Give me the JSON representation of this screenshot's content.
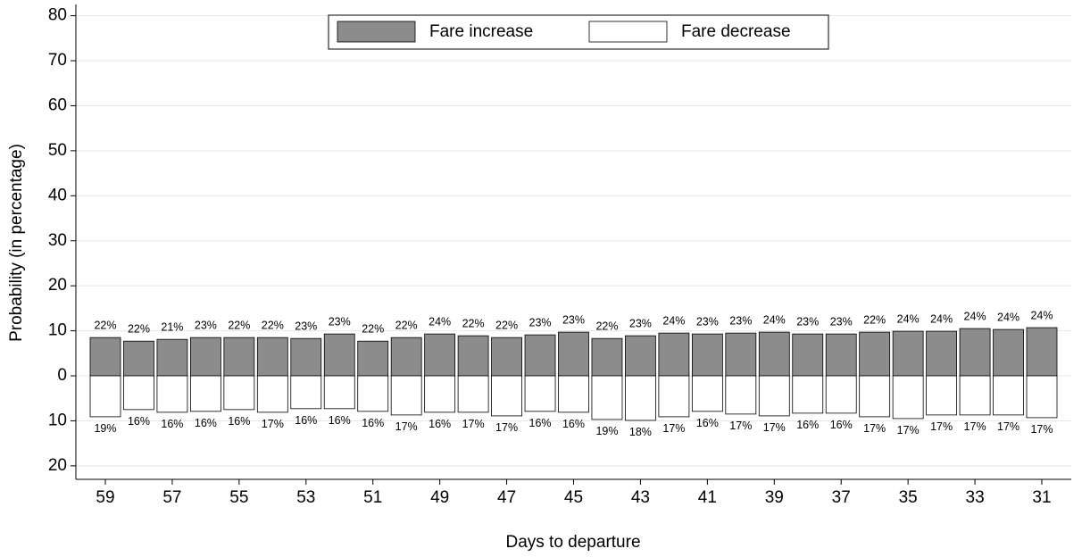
{
  "chart_data": {
    "type": "bar",
    "x_label": "Days to departure",
    "y_label": "Probability (in percentage)",
    "categories": [
      "59",
      null,
      "57",
      null,
      "55",
      null,
      "53",
      null,
      "51",
      null,
      "49",
      null,
      "47",
      null,
      "45",
      null,
      "43",
      null,
      "41",
      null,
      "39",
      null,
      "37",
      null,
      "35",
      null,
      "33",
      null,
      "31"
    ],
    "series": [
      {
        "name": "Fare increase",
        "color": "#8c8c8c",
        "values": [
          8.5,
          7.7,
          8.1,
          8.5,
          8.5,
          8.5,
          8.3,
          9.3,
          7.7,
          8.5,
          9.3,
          8.9,
          8.5,
          9.1,
          9.7,
          8.3,
          8.9,
          9.5,
          9.3,
          9.5,
          9.7,
          9.3,
          9.3,
          9.7,
          9.9,
          9.9,
          10.5,
          10.3,
          10.7
        ],
        "annotations": [
          "22%",
          "22%",
          "21%",
          "23%",
          "22%",
          "22%",
          "23%",
          "23%",
          "22%",
          "22%",
          "24%",
          "22%",
          "22%",
          "23%",
          "23%",
          "22%",
          "23%",
          "24%",
          "23%",
          "23%",
          "24%",
          "23%",
          "23%",
          "22%",
          "24%",
          "24%",
          "24%",
          "24%",
          "24%"
        ]
      },
      {
        "name": "Fare decrease",
        "color": "#ffffff",
        "values": [
          -9.1,
          -7.5,
          -8.1,
          -7.9,
          -7.5,
          -8.1,
          -7.3,
          -7.3,
          -7.9,
          -8.7,
          -8.1,
          -8.1,
          -8.9,
          -7.9,
          -8.1,
          -9.7,
          -9.9,
          -9.1,
          -7.9,
          -8.5,
          -8.9,
          -8.3,
          -8.3,
          -9.1,
          -9.5,
          -8.7,
          -8.7,
          -8.7,
          -9.3
        ],
        "annotations": [
          "19%",
          "16%",
          "16%",
          "16%",
          "16%",
          "17%",
          "16%",
          "16%",
          "16%",
          "17%",
          "16%",
          "17%",
          "17%",
          "16%",
          "16%",
          "19%",
          "18%",
          "17%",
          "16%",
          "17%",
          "17%",
          "16%",
          "16%",
          "17%",
          "17%",
          "17%",
          "17%",
          "17%",
          "17%"
        ]
      }
    ],
    "ylim": [
      -23,
      82.5
    ],
    "yticks": [
      {
        "value": -20,
        "label": "20"
      },
      {
        "value": -10,
        "label": "10"
      },
      0,
      10,
      20,
      30,
      40,
      50,
      60,
      70,
      80
    ],
    "grid": true,
    "legend": "top"
  }
}
